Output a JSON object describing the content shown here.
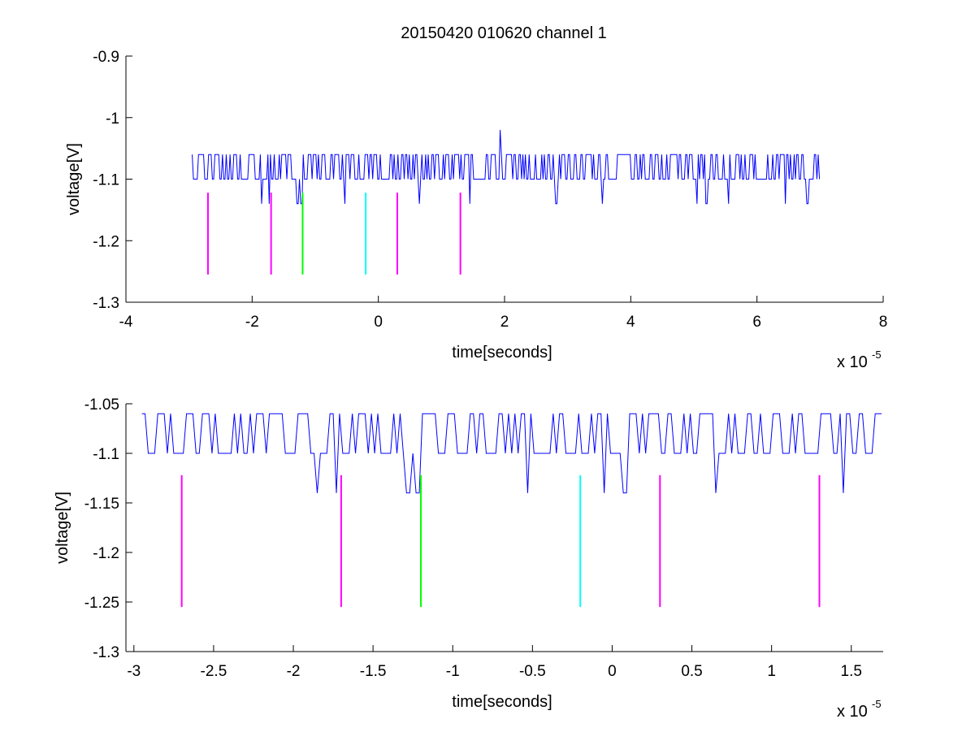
{
  "figure": {
    "title": "20150420 010620 channel 1"
  },
  "chart_data": [
    {
      "type": "line",
      "title": "20150420 010620 channel 1",
      "xlabel": "time[seconds]",
      "ylabel": "voltage[V]",
      "x_exponent": "x 10",
      "x_exponent_power": "-5",
      "xlim": [
        -4,
        8
      ],
      "ylim": [
        -1.3,
        -0.9
      ],
      "xticks": [
        -4,
        -2,
        0,
        2,
        4,
        6,
        8
      ],
      "xtick_labels": [
        "-4",
        "-2",
        "0",
        "2",
        "4",
        "6",
        "8"
      ],
      "yticks": [
        -1.3,
        -1.2,
        -1.1,
        -1,
        -0.9
      ],
      "ytick_labels": [
        "-1.3",
        "-1.2",
        "-1.1",
        "-1",
        "-0.9"
      ],
      "grid": false,
      "series": [
        {
          "color": "#0000ff",
          "x_range": [
            -2.95,
            7.0
          ],
          "upper_level": -1.06,
          "base_level": -1.1,
          "dips": [
            {
              "x": -1.85,
              "y": -1.14
            },
            {
              "x": -1.73,
              "y": -1.14
            },
            {
              "x": -1.28,
              "y": -1.14
            },
            {
              "x": -1.22,
              "y": -1.14
            },
            {
              "x": -0.53,
              "y": -1.14
            },
            {
              "x": 0.65,
              "y": -1.14
            },
            {
              "x": 1.45,
              "y": -1.14
            },
            {
              "x": 2.82,
              "y": -1.14
            },
            {
              "x": 3.55,
              "y": -1.14
            },
            {
              "x": 5.05,
              "y": -1.14
            },
            {
              "x": 5.2,
              "y": -1.14
            },
            {
              "x": 5.55,
              "y": -1.14
            },
            {
              "x": 6.45,
              "y": -1.14
            },
            {
              "x": 6.8,
              "y": -1.14
            }
          ],
          "peaks": [
            {
              "x": 1.93,
              "y": -1.02
            }
          ]
        }
      ],
      "markers": [
        {
          "x": -2.7,
          "y_top": -1.122,
          "y_bottom": -1.255,
          "color": "#ff00ff"
        },
        {
          "x": -1.7,
          "y_top": -1.122,
          "y_bottom": -1.255,
          "color": "#ff00ff"
        },
        {
          "x": -1.2,
          "y_top": -1.122,
          "y_bottom": -1.255,
          "color": "#00ff00"
        },
        {
          "x": -0.2,
          "y_top": -1.122,
          "y_bottom": -1.255,
          "color": "#00ffff"
        },
        {
          "x": 0.3,
          "y_top": -1.122,
          "y_bottom": -1.255,
          "color": "#ff00ff"
        },
        {
          "x": 1.3,
          "y_top": -1.122,
          "y_bottom": -1.255,
          "color": "#ff00ff"
        }
      ]
    },
    {
      "type": "line",
      "title": "",
      "xlabel": "time[seconds]",
      "ylabel": "voltage[V]",
      "x_exponent": "x 10",
      "x_exponent_power": "-5",
      "xlim": [
        -3.05,
        1.7
      ],
      "ylim": [
        -1.3,
        -1.05
      ],
      "xticks": [
        -3,
        -2.5,
        -2,
        -1.5,
        -1,
        -0.5,
        0,
        0.5,
        1,
        1.5
      ],
      "xtick_labels": [
        "-3",
        "-2.5",
        "-2",
        "-1.5",
        "-1",
        "-0.5",
        "0",
        "0.5",
        "1",
        "1.5"
      ],
      "yticks": [
        -1.3,
        -1.25,
        -1.2,
        -1.15,
        -1.1,
        -1.05
      ],
      "ytick_labels": [
        "-1.3",
        "-1.25",
        "-1.2",
        "-1.15",
        "-1.1",
        "-1.05"
      ],
      "grid": false,
      "series": [
        {
          "color": "#0000ff",
          "x_range": [
            -2.95,
            1.7
          ],
          "upper_level": -1.06,
          "base_level": -1.1,
          "dips": [
            {
              "x": -1.85,
              "y": -1.14
            },
            {
              "x": -1.73,
              "y": -1.14
            },
            {
              "x": -1.28,
              "y": -1.14
            },
            {
              "x": -1.22,
              "y": -1.14
            },
            {
              "x": -0.53,
              "y": -1.14
            },
            {
              "x": -0.05,
              "y": -1.14
            },
            {
              "x": 0.08,
              "y": -1.14
            },
            {
              "x": 0.65,
              "y": -1.14
            },
            {
              "x": 1.45,
              "y": -1.14
            }
          ],
          "peaks": []
        }
      ],
      "markers": [
        {
          "x": -2.7,
          "y_top": -1.122,
          "y_bottom": -1.255,
          "color": "#ff00ff"
        },
        {
          "x": -1.7,
          "y_top": -1.122,
          "y_bottom": -1.255,
          "color": "#ff00ff"
        },
        {
          "x": -1.2,
          "y_top": -1.122,
          "y_bottom": -1.255,
          "color": "#00ff00"
        },
        {
          "x": -0.2,
          "y_top": -1.122,
          "y_bottom": -1.255,
          "color": "#00ffff"
        },
        {
          "x": 0.3,
          "y_top": -1.122,
          "y_bottom": -1.255,
          "color": "#ff00ff"
        },
        {
          "x": 1.3,
          "y_top": -1.122,
          "y_bottom": -1.255,
          "color": "#ff00ff"
        }
      ]
    }
  ]
}
